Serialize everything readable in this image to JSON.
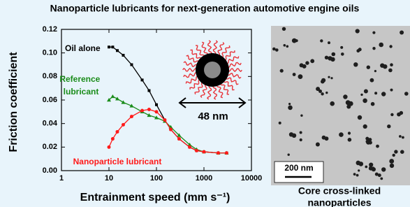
{
  "title": "Nanoparticle lubricants for next-generation automotive engine oils",
  "chart_data": {
    "type": "line",
    "x_label": "Entrainment speed (mm s⁻¹)",
    "y_label": "Friction coefficient",
    "x_scale": "log",
    "xlim": [
      1,
      10000
    ],
    "xticks": [
      1,
      10,
      100,
      1000,
      10000
    ],
    "ylim": [
      0,
      0.12
    ],
    "yticks": [
      {
        "value": 0,
        "label": "0.00"
      },
      0.02,
      0.04,
      0.06,
      0.08,
      {
        "value": 0.1,
        "label": "0.10"
      },
      0.12
    ],
    "x": [
      10,
      12,
      15,
      20,
      30,
      50,
      70,
      100,
      150,
      200,
      300,
      500,
      700,
      1000,
      2000,
      3000
    ],
    "series": [
      {
        "name": "Oil alone",
        "color": "#000000",
        "marker": "square",
        "values": [
          0.105,
          0.105,
          0.102,
          0.098,
          0.09,
          0.077,
          0.068,
          0.056,
          0.043,
          0.035,
          0.027,
          0.02,
          0.017,
          0.016,
          0.015,
          0.015
        ]
      },
      {
        "name": "Reference lubricant",
        "color": "#1a8c1a",
        "marker": "triangle",
        "values": [
          0.06,
          0.063,
          0.061,
          0.058,
          0.055,
          0.05,
          0.047,
          0.045,
          0.042,
          0.037,
          0.03,
          0.022,
          0.018,
          0.016,
          0.015,
          0.015
        ]
      },
      {
        "name": "Nanoparticle lubricant",
        "color": "#ff1a1a",
        "marker": "circle",
        "values": [
          0.02,
          0.027,
          0.033,
          0.039,
          0.046,
          0.051,
          0.052,
          0.05,
          0.043,
          0.035,
          0.027,
          0.02,
          0.017,
          0.016,
          0.015,
          0.015
        ]
      }
    ]
  },
  "schematic": {
    "size_label": "48 nm"
  },
  "micrograph": {
    "scale_bar": "200 nm",
    "caption": [
      "Core cross-linked",
      "nanoparticles"
    ]
  }
}
